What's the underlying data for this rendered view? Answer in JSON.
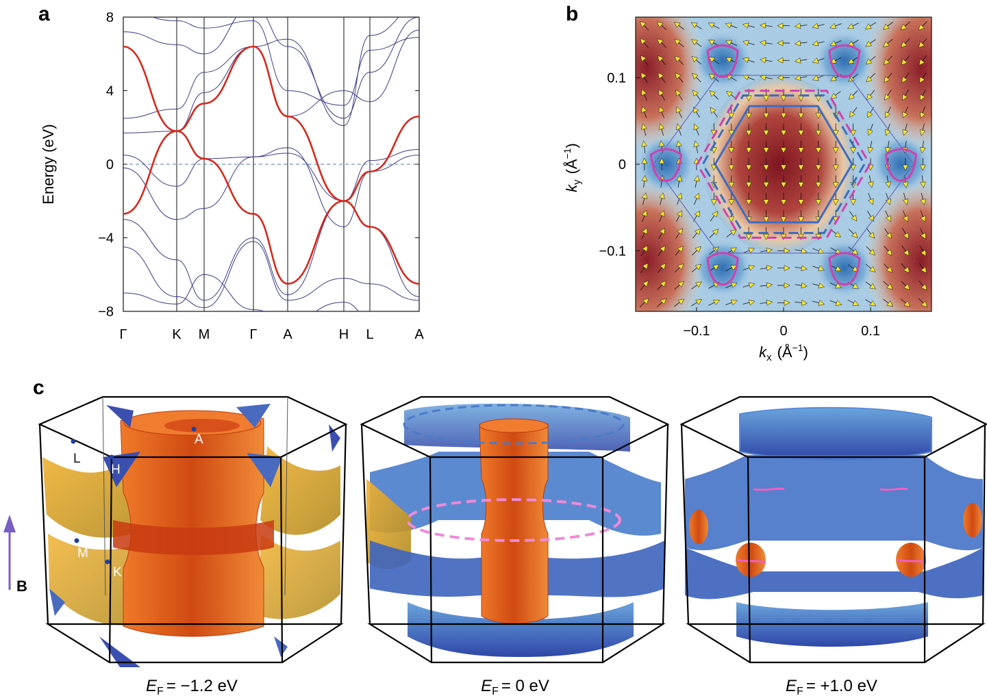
{
  "panels": {
    "a": "a",
    "b": "b",
    "c": "c"
  },
  "chart_data": [
    {
      "panel": "a",
      "type": "line",
      "title": "",
      "ylabel": "Energy (eV)",
      "xlabel": "",
      "ylim": [
        -8,
        8
      ],
      "yticks": [
        "8",
        "4",
        "0",
        "−4",
        "−8"
      ],
      "ytick_values": [
        8,
        4,
        0,
        -4,
        -8
      ],
      "kpath_labels": [
        "Γ",
        "K",
        "M",
        "Γ",
        "A",
        "H",
        "L",
        "A"
      ],
      "fermi_level": 0,
      "highlight_series": {
        "name": "highlighted band",
        "color": "#d6281c",
        "points": [
          [
            0,
            -2.7
          ],
          [
            1,
            1.8
          ],
          [
            2,
            3.3
          ],
          [
            3,
            6.4
          ],
          [
            4,
            2.6
          ],
          [
            5,
            -2.0
          ],
          [
            6,
            -3.4
          ],
          [
            7,
            -6.5
          ]
        ],
        "points_b": [
          [
            0,
            6.4
          ],
          [
            1,
            1.8
          ],
          [
            2,
            0.3
          ],
          [
            3,
            -2.7
          ],
          [
            4,
            -6.5
          ],
          [
            5,
            -2.0
          ],
          [
            6,
            -0.4
          ],
          [
            7,
            2.6
          ]
        ]
      },
      "other_bands_color": "#3a3a8c"
    },
    {
      "panel": "b",
      "type": "heatmap",
      "xlabel_italic": "k",
      "xlabel_sub": "x",
      "xlabel_unit": "(Å",
      "xlabel_exp": "−1",
      "xlabel_close": ")",
      "ylabel_italic": "k",
      "ylabel_sub": "y",
      "ylabel_unit": "(Å",
      "ylabel_exp": "−1",
      "ylabel_close": ")",
      "xticks": [
        "−0.1",
        "0",
        "0.1"
      ],
      "xtick_values": [
        -0.1,
        0,
        0.1
      ],
      "yticks": [
        "0.1",
        "0",
        "−0.1"
      ],
      "ytick_values": [
        0.1,
        0,
        -0.1
      ],
      "xlim": [
        -0.17,
        0.17
      ],
      "ylim": [
        -0.17,
        0.17
      ],
      "colors": {
        "high": "#8b1e2a",
        "mid": "#f2e8c8",
        "low": "#3b7cc0",
        "contour_pink": "#d040b0",
        "contour_blue": "#3e6cc0",
        "arrow": "#f5e632"
      }
    }
  ],
  "panel_c": {
    "point_labels": [
      "A",
      "L",
      "H",
      "M",
      "K"
    ],
    "axis_label": "B",
    "captions": [
      {
        "e": "E",
        "sub": "F",
        "value": "= −1.2 eV"
      },
      {
        "e": "E",
        "sub": "F",
        "value": "= 0 eV"
      },
      {
        "e": "E",
        "sub": "F",
        "value": "= +1.0 eV"
      }
    ],
    "colors": {
      "orange": "#e8601c",
      "blue": "#3f6fc8",
      "pink": "#f08ad8"
    }
  }
}
